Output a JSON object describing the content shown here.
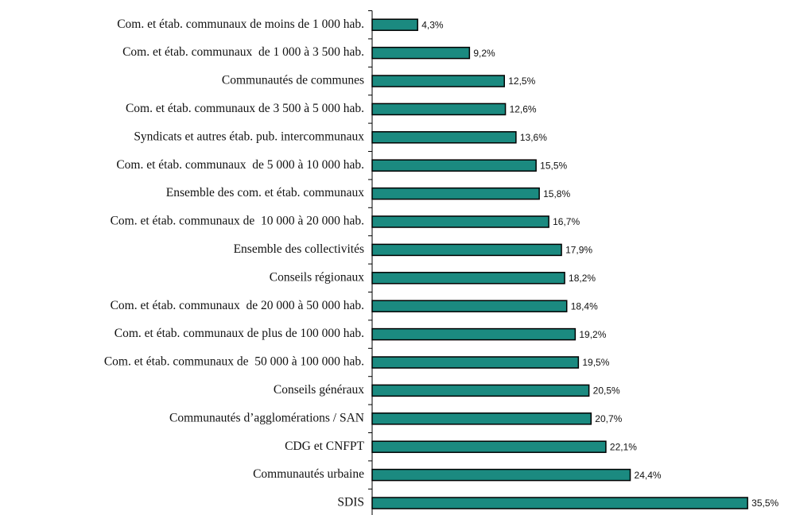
{
  "chart_data": {
    "type": "bar",
    "orientation": "horizontal",
    "color": "#1b8a80",
    "categories": [
      "Com. et étab. communaux de moins de 1 000 hab.",
      "Com. et étab. communaux  de 1 000 à 3 500 hab.",
      "Communautés de communes",
      "Com. et étab. communaux de 3 500 à 5 000 hab.",
      "Syndicats et autres étab. pub. intercommunaux",
      "Com. et étab. communaux  de 5 000 à 10 000 hab.",
      "Ensemble des com. et étab. communaux",
      "Com. et étab. communaux de  10 000 à 20 000 hab.",
      "Ensemble des collectivités",
      "Conseils régionaux",
      "Com. et étab. communaux  de 20 000 à 50 000 hab.",
      "Com. et étab. communaux de plus de 100 000 hab.",
      "Com. et étab. communaux de  50 000 à 100 000 hab.",
      "Conseils généraux",
      "Communautés d’agglomérations / SAN",
      "CDG et CNFPT",
      "Communautés urbaine",
      "SDIS"
    ],
    "values": [
      4.3,
      9.2,
      12.5,
      12.6,
      13.6,
      15.5,
      15.8,
      16.7,
      17.9,
      18.2,
      18.4,
      19.2,
      19.5,
      20.5,
      20.7,
      22.1,
      24.4,
      35.5
    ],
    "value_labels": [
      "4,3%",
      "9,2%",
      "12,5%",
      "12,6%",
      "13,6%",
      "15,5%",
      "15,8%",
      "16,7%",
      "17,9%",
      "18,2%",
      "18,4%",
      "19,2%",
      "19,5%",
      "20,5%",
      "20,7%",
      "22,1%",
      "24,4%",
      "35,5%"
    ]
  }
}
